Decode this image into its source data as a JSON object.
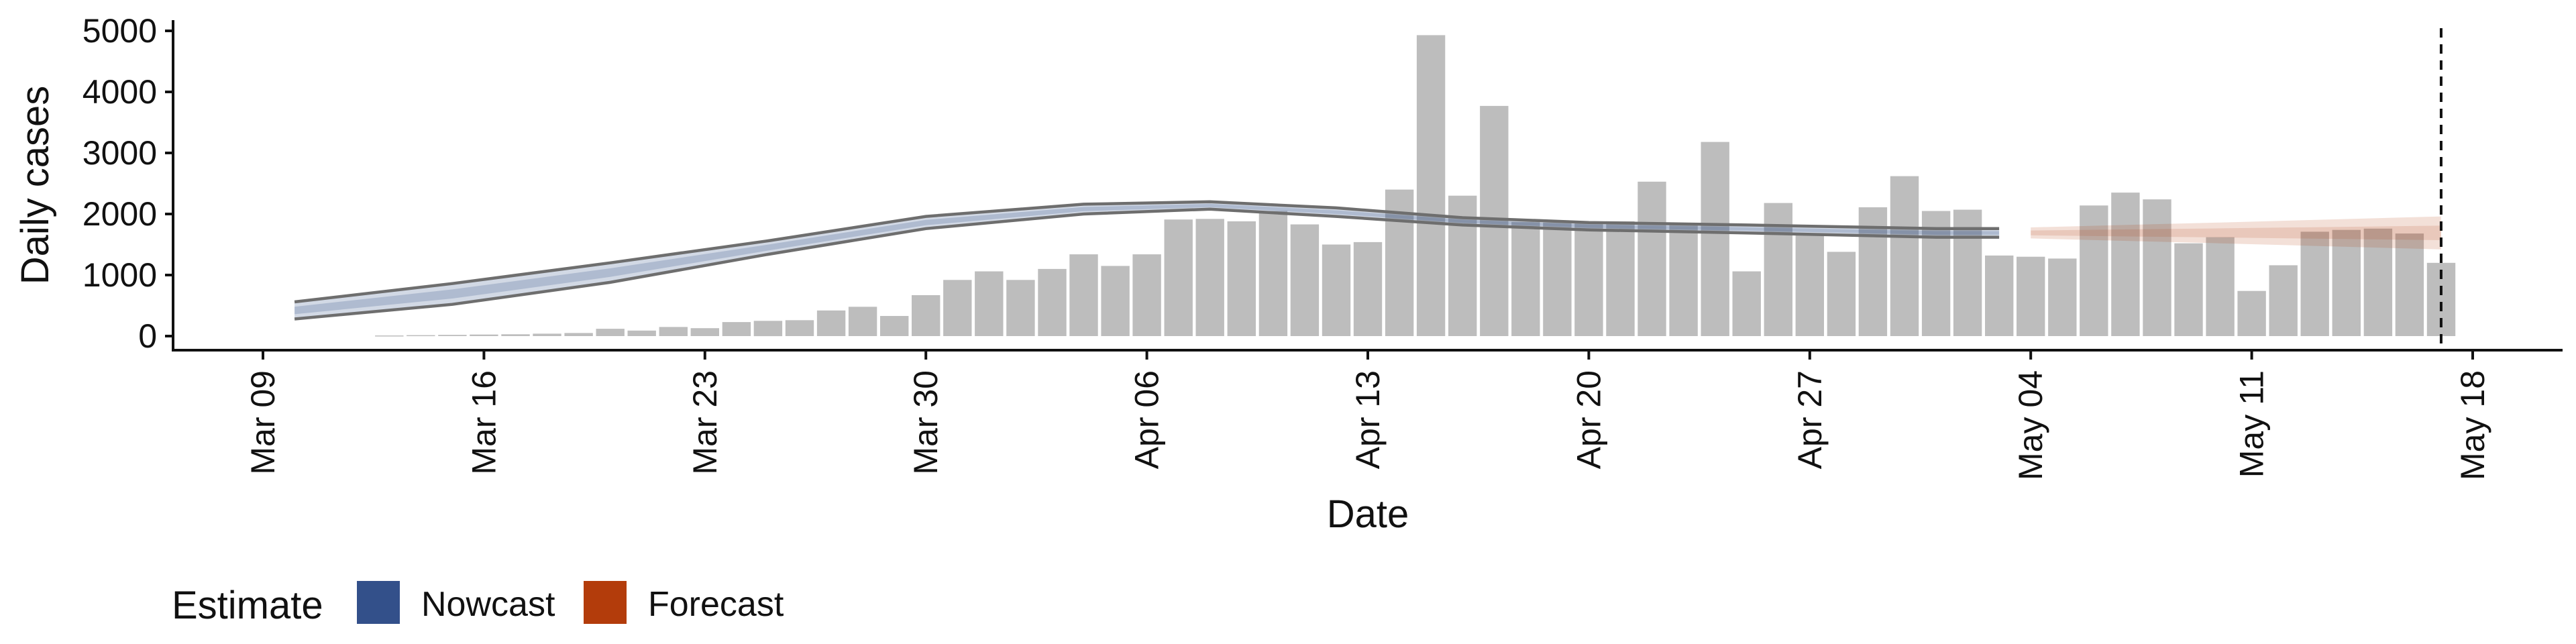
{
  "chart_data": {
    "type": "bar",
    "xlabel": "Date",
    "ylabel": "Daily cases",
    "ylim": [
      0,
      5000
    ],
    "yticks": [
      0,
      1000,
      2000,
      3000,
      4000,
      5000
    ],
    "xlim": [
      "2020-03-09",
      "2020-05-18"
    ],
    "x_ticks": [
      "2020-03-09",
      "2020-03-16",
      "2020-03-23",
      "2020-03-30",
      "2020-04-06",
      "2020-04-13",
      "2020-04-20",
      "2020-04-27",
      "2020-05-04",
      "2020-05-11",
      "2020-05-18"
    ],
    "x_tick_labels": [
      "Mar 09",
      "Mar 16",
      "Mar 23",
      "Mar 30",
      "Apr 06",
      "Apr 13",
      "Apr 20",
      "Apr 27",
      "May 04",
      "May 11",
      "May 18"
    ],
    "vline_date": "2020-05-17",
    "grid": false,
    "bar_color": "#bdbdbd",
    "bars": {
      "dates": [
        "2020-03-13",
        "2020-03-14",
        "2020-03-15",
        "2020-03-16",
        "2020-03-17",
        "2020-03-18",
        "2020-03-19",
        "2020-03-20",
        "2020-03-21",
        "2020-03-22",
        "2020-03-23",
        "2020-03-24",
        "2020-03-25",
        "2020-03-26",
        "2020-03-27",
        "2020-03-28",
        "2020-03-29",
        "2020-03-30",
        "2020-03-31",
        "2020-04-01",
        "2020-04-02",
        "2020-04-03",
        "2020-04-04",
        "2020-04-05",
        "2020-04-06",
        "2020-04-07",
        "2020-04-08",
        "2020-04-09",
        "2020-04-10",
        "2020-04-11",
        "2020-04-12",
        "2020-04-13",
        "2020-04-14",
        "2020-04-15",
        "2020-04-16",
        "2020-04-17",
        "2020-04-18",
        "2020-04-19",
        "2020-04-20",
        "2020-04-21",
        "2020-04-22",
        "2020-04-23",
        "2020-04-24",
        "2020-04-25",
        "2020-04-26",
        "2020-04-27",
        "2020-04-28",
        "2020-04-29",
        "2020-04-30",
        "2020-05-01",
        "2020-05-02",
        "2020-05-03",
        "2020-05-04",
        "2020-05-05",
        "2020-05-06",
        "2020-05-07",
        "2020-05-08",
        "2020-05-09",
        "2020-05-10",
        "2020-05-11",
        "2020-05-12",
        "2020-05-13",
        "2020-05-14",
        "2020-05-15",
        "2020-05-16",
        "2020-05-17"
      ],
      "values": [
        10,
        15,
        20,
        25,
        30,
        40,
        50,
        120,
        90,
        150,
        130,
        230,
        250,
        260,
        420,
        480,
        330,
        670,
        920,
        1060,
        920,
        1100,
        1340,
        1150,
        1340,
        1910,
        1920,
        1880,
        2050,
        1830,
        1500,
        1540,
        2400,
        4930,
        2300,
        3770,
        1870,
        1860,
        1850,
        1880,
        2530,
        1840,
        3180,
        1060,
        2180,
        1680,
        1380,
        2110,
        2620,
        2050,
        2070,
        1320,
        1300,
        1270,
        2140,
        2350,
        2240,
        1520,
        1620,
        740,
        1160,
        1710,
        1740,
        1760,
        1680,
        1200
      ]
    },
    "series": [
      {
        "name": "Nowcast",
        "color": "#33508a",
        "dates": [
          "2020-03-10",
          "2020-03-15",
          "2020-03-20",
          "2020-03-25",
          "2020-03-30",
          "2020-04-04",
          "2020-04-08",
          "2020-04-12",
          "2020-04-16",
          "2020-04-20",
          "2020-04-25",
          "2020-05-01",
          "2020-05-03"
        ],
        "lower": [
          280,
          520,
          880,
          1340,
          1760,
          2000,
          2080,
          1960,
          1820,
          1740,
          1690,
          1620,
          1620
        ],
        "upper": [
          560,
          860,
          1200,
          1560,
          1960,
          2160,
          2200,
          2100,
          1940,
          1860,
          1820,
          1760,
          1760
        ]
      },
      {
        "name": "Forecast",
        "color": "#b33c0b",
        "dates": [
          "2020-05-04",
          "2020-05-10",
          "2020-05-17"
        ],
        "lower": [
          1600,
          1520,
          1420
        ],
        "upper": [
          1780,
          1860,
          1960
        ]
      }
    ],
    "legend": {
      "title": "Estimate",
      "position": "bottom",
      "entries": [
        {
          "label": "Nowcast",
          "color": "#33508a"
        },
        {
          "label": "Forecast",
          "color": "#b33c0b"
        }
      ]
    }
  }
}
